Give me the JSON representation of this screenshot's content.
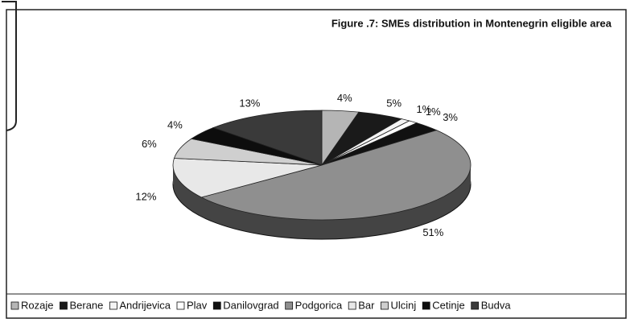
{
  "chart_data": {
    "type": "pie",
    "title": "Figure .7: SMEs distribution in  Montenegrin eligible area",
    "categories": [
      "Rozaje",
      "Berane",
      "Andrijevica",
      "Plav",
      "Danilovgrad",
      "Podgorica",
      "Bar",
      "Ulcinj",
      "Cetinje",
      "Budva"
    ],
    "values": [
      4,
      5,
      1,
      1,
      3,
      51,
      12,
      6,
      4,
      13
    ],
    "value_labels": [
      "4%",
      "5%",
      "1%",
      "1%",
      "3%",
      "51%",
      "12%",
      "6%",
      "4%",
      "13%"
    ],
    "colors": [
      "#b5b5b5",
      "#1a1a1a",
      "#f4f4f4",
      "#ffffff",
      "#111111",
      "#8f8f8f",
      "#e8e8e8",
      "#cfcfcf",
      "#0d0d0d",
      "#3a3a3a"
    ],
    "legend": "bottom"
  }
}
